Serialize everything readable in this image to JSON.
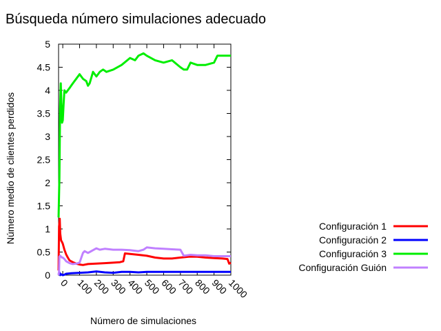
{
  "chart_data": {
    "type": "line",
    "title": "Búsqueda número simulaciones adecuado",
    "xlabel": "Número de simulaciones",
    "ylabel": "Número medio de clientes perdidos",
    "xlim": [
      -25,
      1000
    ],
    "ylim": [
      0,
      5
    ],
    "xticks": [
      "0",
      "100",
      "200",
      "300",
      "400",
      "500",
      "600",
      "700",
      "800",
      "900",
      "1000"
    ],
    "yticks": [
      "0",
      "0.5",
      "1",
      "1.5",
      "2",
      "2.5",
      "3",
      "3.5",
      "4",
      "4.5",
      "5"
    ],
    "legend_position": "right",
    "grid": false,
    "series": [
      {
        "name": "Configuración 1",
        "color": "#ff0000",
        "x": [
          -25,
          -22,
          -18,
          -15,
          -10,
          -5,
          0,
          10,
          20,
          30,
          40,
          50,
          60,
          80,
          100,
          120,
          150,
          200,
          250,
          300,
          340,
          360,
          370,
          400,
          450,
          500,
          550,
          600,
          650,
          700,
          750,
          800,
          850,
          900,
          950,
          980,
          990,
          1000
        ],
        "y": [
          0.1,
          1.05,
          1.22,
          0.9,
          0.75,
          0.72,
          0.68,
          0.55,
          0.45,
          0.38,
          0.32,
          0.3,
          0.28,
          0.25,
          0.23,
          0.22,
          0.24,
          0.25,
          0.26,
          0.27,
          0.28,
          0.3,
          0.47,
          0.46,
          0.44,
          0.42,
          0.38,
          0.36,
          0.36,
          0.38,
          0.4,
          0.4,
          0.38,
          0.37,
          0.36,
          0.35,
          0.25,
          0.27
        ]
      },
      {
        "name": "Configuración 2",
        "color": "#0000ff",
        "x": [
          -25,
          -20,
          -15,
          -10,
          0,
          10,
          20,
          50,
          100,
          150,
          200,
          250,
          300,
          350,
          400,
          450,
          500,
          600,
          700,
          800,
          900,
          1000
        ],
        "y": [
          0.02,
          0.06,
          0.0,
          0.02,
          0.0,
          0.01,
          0.03,
          0.04,
          0.05,
          0.06,
          0.08,
          0.06,
          0.05,
          0.07,
          0.07,
          0.06,
          0.07,
          0.07,
          0.07,
          0.07,
          0.07,
          0.07
        ]
      },
      {
        "name": "Configuración 3",
        "color": "#00ee00",
        "x": [
          -25,
          -20,
          -16,
          -12,
          -8,
          -4,
          0,
          5,
          10,
          20,
          30,
          40,
          50,
          60,
          80,
          100,
          120,
          140,
          150,
          160,
          180,
          200,
          220,
          240,
          260,
          300,
          350,
          400,
          430,
          450,
          480,
          500,
          550,
          600,
          650,
          700,
          720,
          740,
          760,
          800,
          850,
          900,
          920,
          950,
          1000
        ],
        "y": [
          1.25,
          2.1,
          3.6,
          4.15,
          3.7,
          3.3,
          3.35,
          3.7,
          4.0,
          3.95,
          4.0,
          4.05,
          4.1,
          4.15,
          4.25,
          4.35,
          4.25,
          4.2,
          4.1,
          4.15,
          4.4,
          4.3,
          4.4,
          4.45,
          4.4,
          4.45,
          4.55,
          4.7,
          4.65,
          4.75,
          4.8,
          4.75,
          4.65,
          4.6,
          4.65,
          4.5,
          4.45,
          4.45,
          4.6,
          4.55,
          4.55,
          4.6,
          4.75,
          4.75,
          4.75
        ]
      },
      {
        "name": "Configuración Guión",
        "color": "#c080ff",
        "x": [
          -25,
          -22,
          -20,
          -15,
          -10,
          -5,
          0,
          10,
          20,
          30,
          40,
          50,
          60,
          80,
          100,
          120,
          130,
          150,
          160,
          200,
          220,
          250,
          300,
          350,
          400,
          450,
          480,
          500,
          550,
          600,
          650,
          700,
          720,
          740,
          760,
          800,
          850,
          900,
          950,
          1000
        ],
        "y": [
          0.0,
          0.08,
          0.4,
          0.42,
          0.4,
          0.38,
          0.38,
          0.35,
          0.3,
          0.28,
          0.26,
          0.25,
          0.24,
          0.25,
          0.27,
          0.48,
          0.52,
          0.48,
          0.5,
          0.58,
          0.55,
          0.57,
          0.55,
          0.55,
          0.54,
          0.52,
          0.55,
          0.6,
          0.58,
          0.57,
          0.56,
          0.55,
          0.42,
          0.43,
          0.44,
          0.43,
          0.43,
          0.41,
          0.41,
          0.41
        ]
      }
    ]
  }
}
